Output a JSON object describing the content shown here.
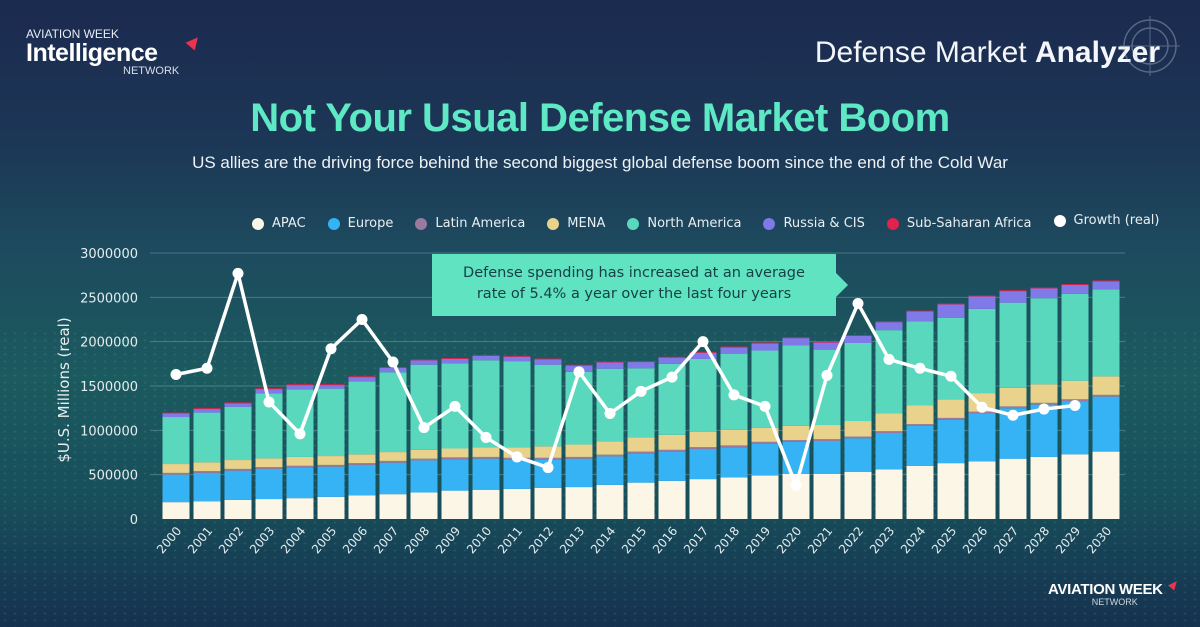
{
  "brand": {
    "top_left_line1": "AVIATION WEEK",
    "top_left_line2": "Intelligence",
    "top_left_line3": "NETWORK",
    "bottom_right_line1": "AVIATION WEEK",
    "bottom_right_line2": "NETWORK",
    "accent_color": "#e8344e"
  },
  "app_title": {
    "regular": "Defense Market ",
    "bold": "Analyzer"
  },
  "callout": {
    "line1": "Defense spending has increased at an average",
    "line2": "rate of 5.4% a year over the last four years"
  },
  "chart_data": {
    "type": "bar",
    "stacked": true,
    "title": "Not Your Usual Defense Market Boom",
    "subtitle": "US allies are the driving force behind the second biggest global defense boom since the end of the Cold War",
    "xlabel": "",
    "ylabel": "$U.S. Millions (real)",
    "ylim": [
      0,
      3000000
    ],
    "yticks": [
      "0",
      "500000",
      "1000000",
      "1500000",
      "2000000",
      "2500000",
      "3000000"
    ],
    "grid": true,
    "legend_position": "top",
    "categories": [
      "2000",
      "2001",
      "2002",
      "2003",
      "2004",
      "2005",
      "2006",
      "2007",
      "2008",
      "2009",
      "2010",
      "2011",
      "2012",
      "2013",
      "2014",
      "2015",
      "2016",
      "2017",
      "2018",
      "2019",
      "2020",
      "2021",
      "2022",
      "2023",
      "2024",
      "2025",
      "2026",
      "2027",
      "2028",
      "2029",
      "2030"
    ],
    "series": [
      {
        "name": "APAC",
        "color": "#fcf6e6",
        "values": [
          190000,
          200000,
          215000,
          225000,
          235000,
          250000,
          265000,
          280000,
          300000,
          320000,
          330000,
          340000,
          350000,
          360000,
          385000,
          410000,
          430000,
          450000,
          470000,
          490000,
          510000,
          510000,
          530000,
          560000,
          600000,
          630000,
          650000,
          680000,
          700000,
          730000,
          760000
        ]
      },
      {
        "name": "Europe",
        "color": "#36b3f5",
        "values": [
          310000,
          320000,
          330000,
          340000,
          345000,
          340000,
          345000,
          355000,
          360000,
          355000,
          350000,
          330000,
          320000,
          320000,
          320000,
          330000,
          330000,
          340000,
          340000,
          360000,
          360000,
          370000,
          380000,
          410000,
          450000,
          490000,
          540000,
          570000,
          590000,
          600000,
          620000
        ]
      },
      {
        "name": "Latin America",
        "color": "#9a7a9f",
        "values": [
          20000,
          20000,
          20000,
          20000,
          20000,
          20000,
          20000,
          20000,
          20000,
          20000,
          20000,
          20000,
          20000,
          20000,
          20000,
          20000,
          20000,
          20000,
          20000,
          20000,
          20000,
          20000,
          20000,
          20000,
          20000,
          20000,
          20000,
          20000,
          20000,
          20000,
          20000
        ]
      },
      {
        "name": "MENA",
        "color": "#e8d28c",
        "values": [
          100000,
          100000,
          100000,
          100000,
          100000,
          100000,
          100000,
          100000,
          100000,
          100000,
          110000,
          120000,
          130000,
          140000,
          150000,
          160000,
          170000,
          175000,
          175000,
          160000,
          160000,
          160000,
          175000,
          200000,
          210000,
          210000,
          210000,
          210000,
          210000,
          210000,
          210000
        ]
      },
      {
        "name": "North America",
        "color": "#5ad8bd",
        "values": [
          530000,
          560000,
          600000,
          730000,
          760000,
          760000,
          820000,
          900000,
          960000,
          960000,
          980000,
          970000,
          920000,
          820000,
          820000,
          780000,
          800000,
          820000,
          860000,
          870000,
          910000,
          850000,
          880000,
          940000,
          950000,
          920000,
          950000,
          960000,
          970000,
          980000,
          980000
        ]
      },
      {
        "name": "Russia & CIS",
        "color": "#7f7ae8",
        "values": [
          40000,
          40000,
          40000,
          50000,
          50000,
          40000,
          50000,
          50000,
          50000,
          50000,
          50000,
          50000,
          60000,
          70000,
          70000,
          70000,
          70000,
          70000,
          70000,
          80000,
          80000,
          80000,
          80000,
          90000,
          110000,
          150000,
          140000,
          130000,
          110000,
          100000,
          90000
        ]
      },
      {
        "name": "Sub-Saharan Africa",
        "color": "#e0224c",
        "values": [
          10000,
          10000,
          10000,
          10000,
          10000,
          10000,
          10000,
          10000,
          10000,
          10000,
          10000,
          10000,
          10000,
          10000,
          10000,
          10000,
          10000,
          10000,
          10000,
          10000,
          10000,
          10000,
          10000,
          10000,
          10000,
          10000,
          10000,
          10000,
          10000,
          10000,
          10000
        ]
      }
    ],
    "line_series": {
      "name": "Growth (real)",
      "color": "#ffffff",
      "note": "values as plotted against the primary axis scale",
      "values": [
        1630000,
        1700000,
        2770000,
        1320000,
        960000,
        1920000,
        2250000,
        1770000,
        1030000,
        1270000,
        920000,
        700000,
        580000,
        1660000,
        1190000,
        1440000,
        1600000,
        2000000,
        1400000,
        1270000,
        380000,
        1620000,
        2430000,
        1800000,
        1700000,
        1610000,
        1260000,
        1170000,
        1240000,
        1280000
      ]
    }
  }
}
